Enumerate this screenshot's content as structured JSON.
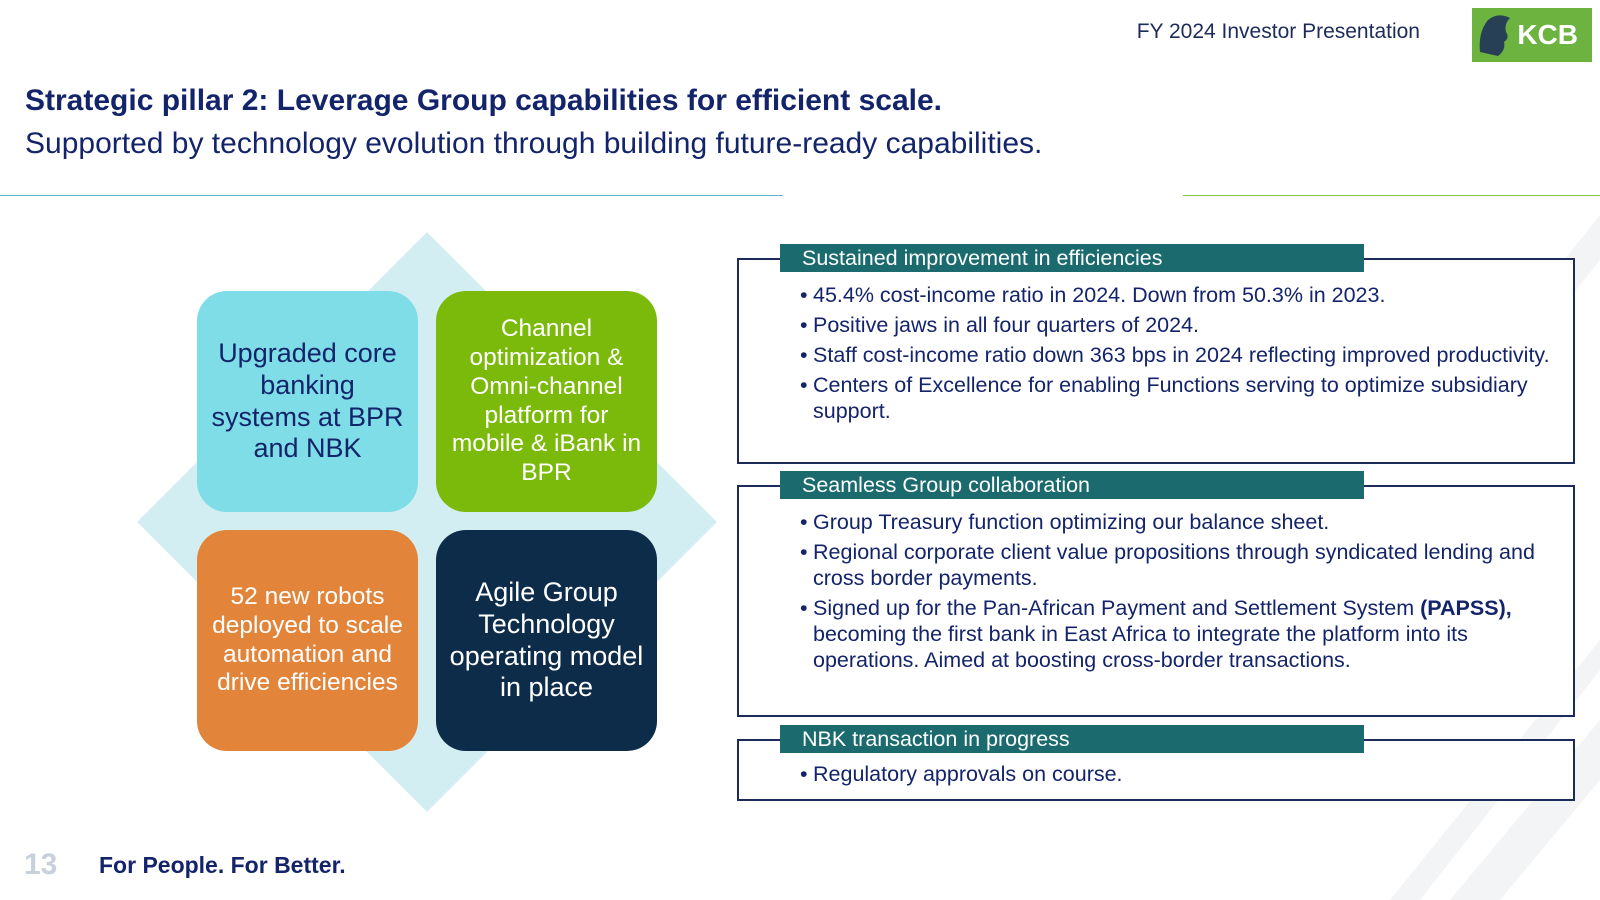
{
  "header": {
    "presentation_title": "FY 2024 Investor Presentation",
    "logo_text": "KCB",
    "brand_color": "#6cb33f"
  },
  "slide": {
    "title": "Strategic pillar 2: Leverage Group capabilities for efficient scale.",
    "subtitle": "Supported by technology evolution through building future-ready capabilities."
  },
  "tiles": [
    {
      "text": "Upgraded core banking systems at BPR and NBK",
      "color": "#7edde6"
    },
    {
      "text": "Channel optimization & Omni-channel platform for mobile & iBank in BPR",
      "color": "#7bba0a"
    },
    {
      "text": "52 new robots deployed to scale automation and drive efficiencies",
      "color": "#e2853a"
    },
    {
      "text": "Agile Group Technology operating model in place",
      "color": "#0d2c4a"
    }
  ],
  "sections": [
    {
      "heading": "Sustained improvement in efficiencies",
      "bullets": [
        "45.4% cost-income ratio in 2024. Down from 50.3% in 2023.",
        "Positive jaws in all four quarters of 2024.",
        "Staff cost-income ratio down 363 bps in 2024 reflecting improved productivity.",
        "Centers of Excellence for enabling Functions serving to optimize subsidiary support."
      ]
    },
    {
      "heading": "Seamless Group collaboration",
      "bullets": [
        "Group Treasury function optimizing our balance sheet.",
        "Regional corporate client value propositions through syndicated lending and cross border payments."
      ],
      "papss": {
        "before": "Signed up for the Pan-African Payment and Settlement System",
        "bold": "(PAPSS),",
        "after": " becoming the first bank in East Africa to integrate the platform into its operations. Aimed at boosting cross-border transactions."
      }
    },
    {
      "heading": "NBK transaction in progress",
      "bullets": [
        "Regulatory approvals on course."
      ]
    }
  ],
  "footer": {
    "page_number": "13",
    "tagline": "For People. For Better."
  },
  "bullet_char": "•"
}
